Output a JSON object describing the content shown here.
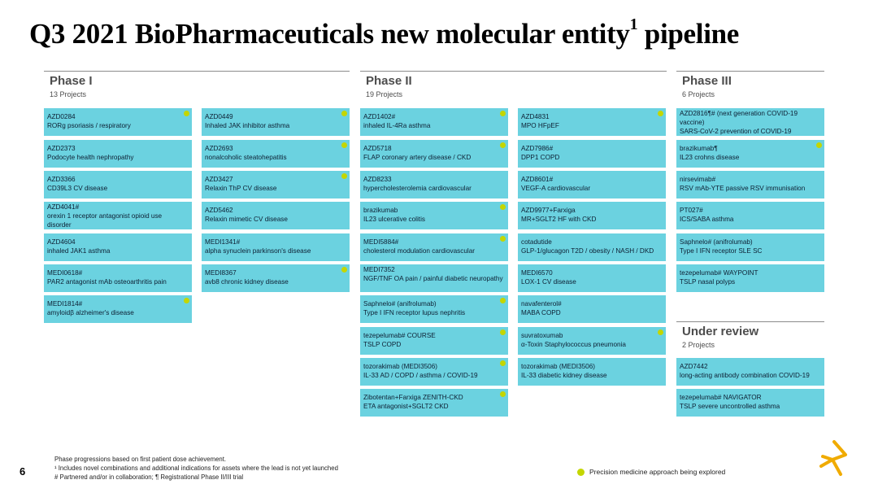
{
  "title": "Q3 2021 BioPharmaceuticals new molecular entity",
  "title_sup": "1",
  "title_end": " pipeline",
  "colors": {
    "card": "#6bd2e0",
    "dot": "#c4d600",
    "logo": "#f0ab00"
  },
  "columns": {
    "phase1": {
      "title": "Phase I",
      "count": "13 Projects"
    },
    "phase2": {
      "title": "Phase II",
      "count": "19 Projects"
    },
    "phase3": {
      "title": "Phase III",
      "count": "6 Projects"
    },
    "review": {
      "title": "Under review",
      "count": "2 Projects"
    }
  },
  "cards": {
    "p1a": [
      {
        "name": "AZD0284",
        "ind": "RORg psoriasis / respiratory",
        "dot": true
      },
      {
        "name": "AZD2373",
        "ind": "Podocyte health nephropathy",
        "dot": false
      },
      {
        "name": "AZD3366",
        "ind": "CD39L3 CV disease",
        "dot": false
      },
      {
        "name": "AZD4041#",
        "ind": "orexin 1 receptor antagonist opioid use disorder",
        "dot": false
      },
      {
        "name": "AZD4604",
        "ind": "inhaled JAK1 asthma",
        "dot": false
      },
      {
        "name": "MEDI0618#",
        "ind": "PAR2 antagonist mAb osteoarthritis pain",
        "dot": false
      },
      {
        "name": "MEDI1814#",
        "ind": "amyloidβ alzheimer's disease",
        "dot": true
      }
    ],
    "p1b": [
      {
        "name": "AZD0449",
        "ind": "Inhaled JAK inhibitor asthma",
        "dot": true
      },
      {
        "name": "AZD2693",
        "ind": "nonalcoholic steatohepatitis",
        "dot": true
      },
      {
        "name": "AZD3427",
        "ind": "Relaxin ThP CV disease",
        "dot": true
      },
      {
        "name": "AZD5462",
        "ind": "Relaxin mimetic CV disease",
        "dot": false
      },
      {
        "name": "MEDI1341#",
        "ind": "alpha synuclein parkinson's disease",
        "dot": false
      },
      {
        "name": "MEDI8367",
        "ind": "avb8 chronic kidney disease",
        "dot": true
      }
    ],
    "p2a": [
      {
        "name": "AZD1402#",
        "ind": "inhaled IL-4Ra asthma",
        "dot": true
      },
      {
        "name": "AZD5718",
        "ind": "FLAP coronary artery disease / CKD",
        "dot": true
      },
      {
        "name": "AZD8233",
        "ind": "hypercholesterolemia cardiovascular",
        "dot": false
      },
      {
        "name": "brazikumab",
        "ind": "IL23 ulcerative colitis",
        "dot": true
      },
      {
        "name": "MEDI5884#",
        "ind": "cholesterol modulation cardiovascular",
        "dot": true
      },
      {
        "name": "MEDI7352",
        "ind": "NGF/TNF OA pain / painful diabetic neuropathy",
        "dot": false
      },
      {
        "name": "Saphnelo# (anifrolumab)",
        "ind": "Type I IFN receptor lupus nephritis",
        "dot": true
      },
      {
        "name": "tezepelumab# COURSE",
        "ind": "TSLP COPD",
        "dot": true
      },
      {
        "name": "tozorakimab (MEDI3506)",
        "ind": "IL-33 AD / COPD / asthma / COVID-19",
        "dot": true
      },
      {
        "name": "Zibotentan+Farxiga ZENITH-CKD",
        "ind": "ETA antagonist+SGLT2 CKD",
        "dot": true
      }
    ],
    "p2b": [
      {
        "name": "AZD4831",
        "ind": "MPO HFpEF",
        "dot": true
      },
      {
        "name": "AZD7986#",
        "ind": "DPP1 COPD",
        "dot": false
      },
      {
        "name": "AZD8601#",
        "ind": "VEGF-A cardiovascular",
        "dot": false
      },
      {
        "name": "AZD9977+Farxiga",
        "ind": "MR+SGLT2 HF with CKD",
        "dot": false
      },
      {
        "name": "cotadutide",
        "ind": "GLP-1/glucagon T2D / obesity / NASH / DKD",
        "dot": false
      },
      {
        "name": "MEDI6570",
        "ind": "LOX-1 CV disease",
        "dot": false
      },
      {
        "name": "navafenterol#",
        "ind": "MABA COPD",
        "dot": false
      },
      {
        "name": "suvratoxumab",
        "ind": "α-Toxin Staphylococcus pneumonia",
        "dot": true
      },
      {
        "name": "tozorakimab (MEDI3506)",
        "ind": "IL-33 diabetic kidney disease",
        "dot": false
      }
    ],
    "p3": [
      {
        "name": "AZD2816¶# (next generation COVID-19 vaccine)",
        "ind": "SARS-CoV-2 prevention of COVID-19",
        "dot": false
      },
      {
        "name": "brazikumab¶",
        "ind": "IL23 crohns disease",
        "dot": true
      },
      {
        "name": "nirsevimab#",
        "ind": "RSV mAb-YTE passive RSV immunisation",
        "dot": false
      },
      {
        "name": "PT027#",
        "ind": "ICS/SABA asthma",
        "dot": false
      },
      {
        "name": "Saphnelo# (anifrolumab)",
        "ind": "Type I IFN receptor SLE SC",
        "dot": false
      },
      {
        "name": "tezepelumab# WAYPOINT",
        "ind": "TSLP nasal polyps",
        "dot": false
      }
    ],
    "review": [
      {
        "name": "AZD7442",
        "ind": "long-acting antibody combination COVID-19",
        "dot": false
      },
      {
        "name": "tezepelumab# NAVIGATOR",
        "ind": "TSLP severe uncontrolled asthma",
        "dot": false
      }
    ]
  },
  "footer": {
    "page": "6",
    "notes": [
      "Phase progressions based on first patient dose achievement.",
      "¹ Includes novel combinations and additional indications for assets where the lead is not yet launched",
      "# Partnered and/or in collaboration; ¶ Registrational Phase II/III trial"
    ],
    "legend": "Precision medicine approach being explored"
  }
}
